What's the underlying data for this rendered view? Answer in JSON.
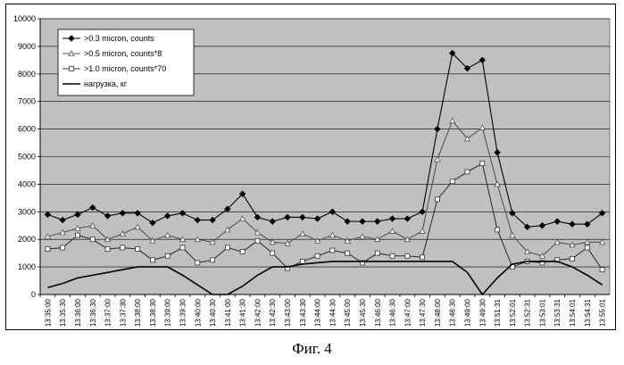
{
  "caption": "Фиг. 4",
  "chart_data": {
    "type": "line",
    "title": "",
    "xlabel": "",
    "ylabel": "",
    "ylim": [
      0,
      10000
    ],
    "yticks": [
      "0",
      "1000",
      "2000",
      "3000",
      "4000",
      "5000",
      "6000",
      "7000",
      "8000",
      "9000",
      "10000"
    ],
    "grid": true,
    "plot_background": "#c0c0c0",
    "legend_position": "top-left",
    "categories": [
      "13:35:00",
      "13:35:30",
      "13:36:00",
      "13:36:30",
      "13:37:00",
      "13:37:30",
      "13:38:00",
      "13:38:30",
      "13:39:00",
      "13:39:30",
      "13:40:00",
      "13:40:30",
      "13:41:00",
      "13:41:30",
      "13:42:00",
      "13:42:30",
      "13:43:00",
      "13:43:30",
      "13:44:00",
      "13:44:30",
      "13:45:00",
      "13:45:30",
      "13:46:00",
      "13:46:30",
      "13:47:00",
      "13:47:30",
      "13:48:00",
      "13:48:30",
      "13:49:00",
      "13:49:30",
      "13:51:31",
      "13:52:01",
      "13:52:31",
      "13:53:01",
      "13:53:31",
      "13:54:01",
      "13:54:31",
      "13:55:01"
    ],
    "series": [
      {
        "name": ">0.3 micron, counts",
        "color": "#000000",
        "marker": "diamond",
        "values": [
          2900,
          2700,
          2900,
          3150,
          2850,
          2950,
          2950,
          2600,
          2850,
          2950,
          2700,
          2700,
          3100,
          3650,
          2800,
          2650,
          2800,
          2800,
          2750,
          3000,
          2650,
          2650,
          2650,
          2750,
          2750,
          3000,
          6000,
          8750,
          8200,
          8500,
          5150,
          2950,
          2450,
          2500,
          2650,
          2550,
          2550,
          2950
        ]
      },
      {
        "name": ">0.5 micron, counts*8",
        "color": "#555555",
        "marker": "triangle",
        "values": [
          2100,
          2250,
          2400,
          2500,
          2000,
          2200,
          2450,
          1950,
          2150,
          2000,
          2000,
          1900,
          2350,
          2750,
          2250,
          1900,
          1850,
          2200,
          1950,
          2150,
          1950,
          2100,
          2000,
          2300,
          2000,
          2300,
          4900,
          6300,
          5650,
          6050,
          4000,
          2150,
          1550,
          1400,
          1900,
          1800,
          1900,
          1900
        ]
      },
      {
        "name": ">1.0 micron, counts*70",
        "color": "#333333",
        "marker": "square",
        "values": [
          1650,
          1700,
          2150,
          2000,
          1650,
          1700,
          1650,
          1250,
          1400,
          1700,
          1150,
          1250,
          1700,
          1550,
          1950,
          1500,
          950,
          1200,
          1400,
          1600,
          1500,
          1150,
          1500,
          1400,
          1400,
          1350,
          3450,
          4100,
          4450,
          4750,
          2350,
          1000,
          1200,
          1150,
          1250,
          1300,
          1700,
          900
        ]
      },
      {
        "name": "нагрузка, кг",
        "color": "#000000",
        "marker": "none",
        "values": [
          250,
          400,
          600,
          700,
          800,
          900,
          1000,
          1000,
          1000,
          700,
          350,
          0,
          0,
          300,
          700,
          1000,
          1000,
          1100,
          1150,
          1200,
          1200,
          1200,
          1200,
          1200,
          1200,
          1200,
          1200,
          1200,
          800,
          0,
          600,
          1100,
          1200,
          1200,
          1200,
          1000,
          700,
          350
        ]
      }
    ]
  }
}
